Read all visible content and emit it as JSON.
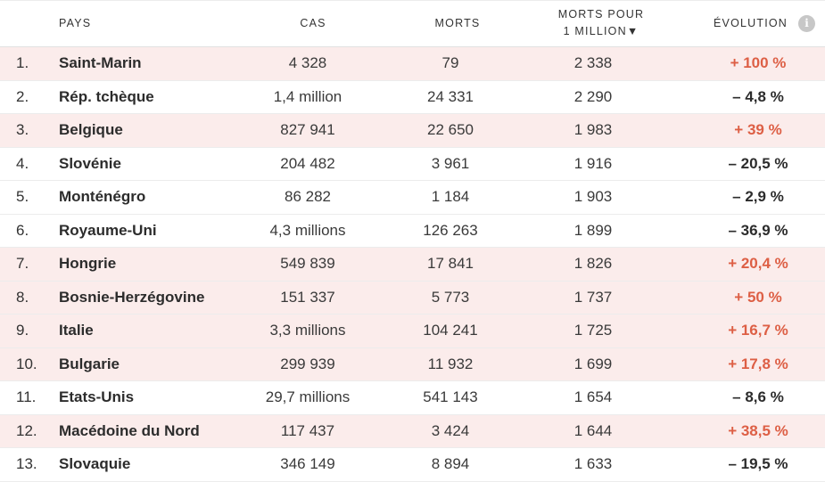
{
  "colors": {
    "increase_text": "#dd5f45",
    "increase_row_bg": "#fbeceb",
    "info_icon_bg": "#c7c7c7"
  },
  "header": {
    "country": "PAYS",
    "cases": "CAS",
    "deaths": "MORTS",
    "deaths_per_million_line1": "MORTS POUR",
    "deaths_per_million_line2": "1 MILLION▼",
    "evolution": "ÉVOLUTION",
    "info_icon_glyph": "i",
    "info_icon": "info-icon"
  },
  "rows": [
    {
      "rank": "1.",
      "country": "Saint-Marin",
      "cases": "4 328",
      "deaths": "79",
      "per_million": "2 338",
      "evolution": "+ 100 %",
      "trend": "up"
    },
    {
      "rank": "2.",
      "country": "Rép. tchèque",
      "cases": "1,4 million",
      "deaths": "24 331",
      "per_million": "2 290",
      "evolution": "– 4,8 %",
      "trend": "down"
    },
    {
      "rank": "3.",
      "country": "Belgique",
      "cases": "827 941",
      "deaths": "22 650",
      "per_million": "1 983",
      "evolution": "+ 39 %",
      "trend": "up"
    },
    {
      "rank": "4.",
      "country": "Slovénie",
      "cases": "204 482",
      "deaths": "3 961",
      "per_million": "1 916",
      "evolution": "– 20,5 %",
      "trend": "down"
    },
    {
      "rank": "5.",
      "country": "Monténégro",
      "cases": "86 282",
      "deaths": "1 184",
      "per_million": "1 903",
      "evolution": "– 2,9 %",
      "trend": "down"
    },
    {
      "rank": "6.",
      "country": "Royaume-Uni",
      "cases": "4,3 millions",
      "deaths": "126 263",
      "per_million": "1 899",
      "evolution": "– 36,9 %",
      "trend": "down"
    },
    {
      "rank": "7.",
      "country": "Hongrie",
      "cases": "549 839",
      "deaths": "17 841",
      "per_million": "1 826",
      "evolution": "+ 20,4 %",
      "trend": "up"
    },
    {
      "rank": "8.",
      "country": "Bosnie-Herzégovine",
      "cases": "151 337",
      "deaths": "5 773",
      "per_million": "1 737",
      "evolution": "+ 50 %",
      "trend": "up"
    },
    {
      "rank": "9.",
      "country": "Italie",
      "cases": "3,3 millions",
      "deaths": "104 241",
      "per_million": "1 725",
      "evolution": "+ 16,7 %",
      "trend": "up"
    },
    {
      "rank": "10.",
      "country": "Bulgarie",
      "cases": "299 939",
      "deaths": "11 932",
      "per_million": "1 699",
      "evolution": "+ 17,8 %",
      "trend": "up"
    },
    {
      "rank": "11.",
      "country": "Etats-Unis",
      "cases": "29,7 millions",
      "deaths": "541 143",
      "per_million": "1 654",
      "evolution": "– 8,6 %",
      "trend": "down"
    },
    {
      "rank": "12.",
      "country": "Macédoine du Nord",
      "cases": "117 437",
      "deaths": "3 424",
      "per_million": "1 644",
      "evolution": "+ 38,5 %",
      "trend": "up"
    },
    {
      "rank": "13.",
      "country": "Slovaquie",
      "cases": "346 149",
      "deaths": "8 894",
      "per_million": "1 633",
      "evolution": "– 19,5 %",
      "trend": "down"
    }
  ]
}
